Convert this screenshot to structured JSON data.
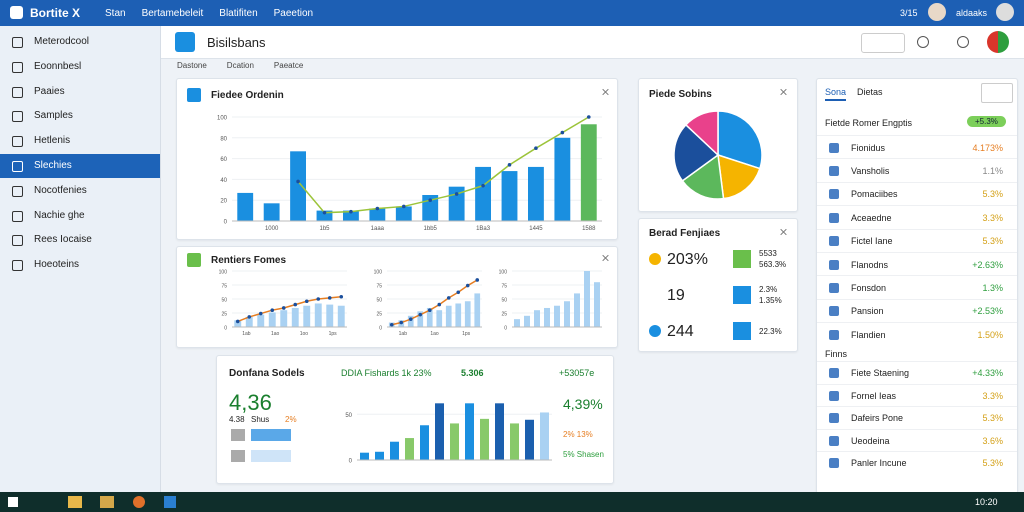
{
  "topbar": {
    "brand": "Bortite X",
    "nav": [
      "Stan",
      "Bertamebeleit",
      "Blatifiten",
      "Paeetion"
    ],
    "right": [
      "3/15",
      "aldaaks"
    ]
  },
  "sidebar": {
    "items": [
      "Meterodcool",
      "Eoonnbesl",
      "Paaies",
      "Samples",
      "Hetlenis",
      "Slechies",
      "Nocotfenies",
      "Nachie ghe",
      "Rees Iocaise",
      "Hoeoteins"
    ],
    "active": 5
  },
  "header": {
    "title": "Bisilsbans"
  },
  "breadcrumbs": [
    "Dastone",
    "Dcation",
    "Paeatce"
  ],
  "main_chart": {
    "type": "bar",
    "title": "Fiedee Ordenin",
    "categories": [
      null,
      "1000",
      null,
      "1b5",
      null,
      "1aaa",
      null,
      "1bb5",
      null,
      "1Ba3",
      null,
      "1445",
      null,
      "1588"
    ],
    "values": [
      27,
      17,
      67,
      10,
      10,
      12,
      14,
      25,
      33,
      52,
      48,
      52,
      80,
      93
    ],
    "line": [
      null,
      null,
      38,
      8,
      9,
      12,
      14,
      20,
      26,
      34,
      54,
      70,
      85,
      100
    ],
    "color": "#1a8fe0",
    "highlight": 13,
    "highlight_color": "#5cb85c",
    "line_color": "#9cc43a",
    "ylim": [
      0,
      100
    ],
    "yticks": [
      0,
      20,
      40,
      60,
      80,
      100
    ]
  },
  "mini_panel": {
    "title": "Rentiers Fomes",
    "charts": [
      {
        "type": "bar",
        "categories": [
          "1ab",
          "1ao",
          "1oo",
          "1ps"
        ],
        "values": [
          12,
          18,
          22,
          26,
          30,
          34,
          38,
          42,
          40,
          38
        ],
        "line": [
          10,
          18,
          24,
          30,
          34,
          40,
          46,
          50,
          52,
          54
        ],
        "line_color": "#e67e22",
        "ylim": [
          0,
          100
        ],
        "yticks": [
          0,
          25,
          50,
          75,
          100
        ]
      },
      {
        "type": "bar",
        "categories": [
          "1ab",
          "1ao",
          "1ps"
        ],
        "values": [
          8,
          12,
          20,
          28,
          34,
          30,
          38,
          42,
          46,
          60
        ],
        "line": [
          4,
          8,
          14,
          22,
          30,
          40,
          52,
          62,
          74,
          84
        ],
        "line_color": "#e67e22",
        "ylim": [
          0,
          100
        ],
        "yticks": [
          0,
          25,
          50,
          75,
          100
        ]
      },
      {
        "type": "bar",
        "categories": [],
        "values": [
          14,
          20,
          30,
          34,
          38,
          46,
          60,
          100,
          80
        ],
        "line": [],
        "line_color": "#e67e22",
        "ylim": [
          0,
          100
        ],
        "yticks": [
          0,
          25,
          50,
          75,
          100
        ]
      }
    ],
    "color": "#a9d1f2"
  },
  "pie": {
    "type": "pie",
    "title": "Piede Sobins",
    "values": [
      30,
      18,
      17,
      22,
      13
    ],
    "colors": [
      "#1a8fe0",
      "#f5b400",
      "#5cb85c",
      "#1b4f9c",
      "#e9418b"
    ]
  },
  "stats": {
    "title": "Berad Fenjiaes",
    "rows": [
      {
        "value": "203%",
        "swatch": "#6abf4b",
        "labels": [
          "5533",
          "563.3%"
        ]
      },
      {
        "value": "19",
        "swatch": "#1a8fe0",
        "labels": [
          "2.3%",
          "1.35%"
        ]
      },
      {
        "value": "244",
        "swatch": "#1a8fe0",
        "labels": [
          "22.3%"
        ]
      }
    ]
  },
  "kpi": {
    "title": "Donfana Sodels",
    "headers": [
      "DDIA Fishards 1k 23%",
      "5.306",
      "+53057e"
    ],
    "big": "4,36",
    "sub": [
      "4.38",
      "Shus",
      "2%"
    ],
    "right_big": "4,39%",
    "right_sub": [
      "2% 13%",
      "5% Shasen"
    ],
    "chart": {
      "type": "bar",
      "values": [
        8,
        9,
        20,
        24,
        38,
        62,
        40,
        62,
        45,
        62,
        40,
        44,
        52
      ],
      "colors": [
        "#1a8fe0",
        "#1a8fe0",
        "#1a8fe0",
        "#88c96a",
        "#1a8fe0",
        "#1b5fae",
        "#88c96a",
        "#1a8fe0",
        "#88c96a",
        "#1b5fae",
        "#88c96a",
        "#1b5fae",
        "#a9d1f2"
      ],
      "ylim": [
        0,
        70
      ],
      "yticks": [
        0,
        {
          "value": 50,
          "label": "50"
        }
      ]
    }
  },
  "right_panel": {
    "tabs": [
      "Sona",
      "Dietas"
    ],
    "header": "Fietde Romer Engptis",
    "badge": "+5.3%",
    "items": [
      {
        "name": "Fionidus",
        "value": "4.173%",
        "color": "#e67e22"
      },
      {
        "name": "Vansholis",
        "value": "1.1%",
        "color": "#888888"
      },
      {
        "name": "Pomaciibes",
        "value": "5.3%",
        "color": "#d4a017"
      },
      {
        "name": "Aceaedne",
        "value": "3.3%",
        "color": "#d4a017"
      },
      {
        "name": "Fictel Iane",
        "value": "5.3%",
        "color": "#d4a017"
      },
      {
        "name": "Flanodns",
        "value": "+2.63%",
        "color": "#2e9e3e"
      },
      {
        "name": "Fonsdon",
        "value": "1.3%",
        "color": "#2e9e3e"
      },
      {
        "name": "Pansion",
        "value": "+2.53%",
        "color": "#2e9e3e"
      },
      {
        "name": "Flandien",
        "value": "1.50%",
        "color": "#d4a017"
      }
    ],
    "section": "Finns",
    "section_items": [
      {
        "name": "Fiete Staening",
        "value": "+4.33%",
        "color": "#2e9e3e"
      },
      {
        "name": "Fornel Ieas",
        "value": "3.3%",
        "color": "#d4a017"
      },
      {
        "name": "Dafeirs Pone",
        "value": "5.3%",
        "color": "#d4a017"
      },
      {
        "name": "Ueodeina",
        "value": "3.6%",
        "color": "#d4a017"
      },
      {
        "name": "Panler Incune",
        "value": "5.3%",
        "color": "#d4a017"
      }
    ]
  },
  "taskbar": {
    "clock": "10:20"
  }
}
